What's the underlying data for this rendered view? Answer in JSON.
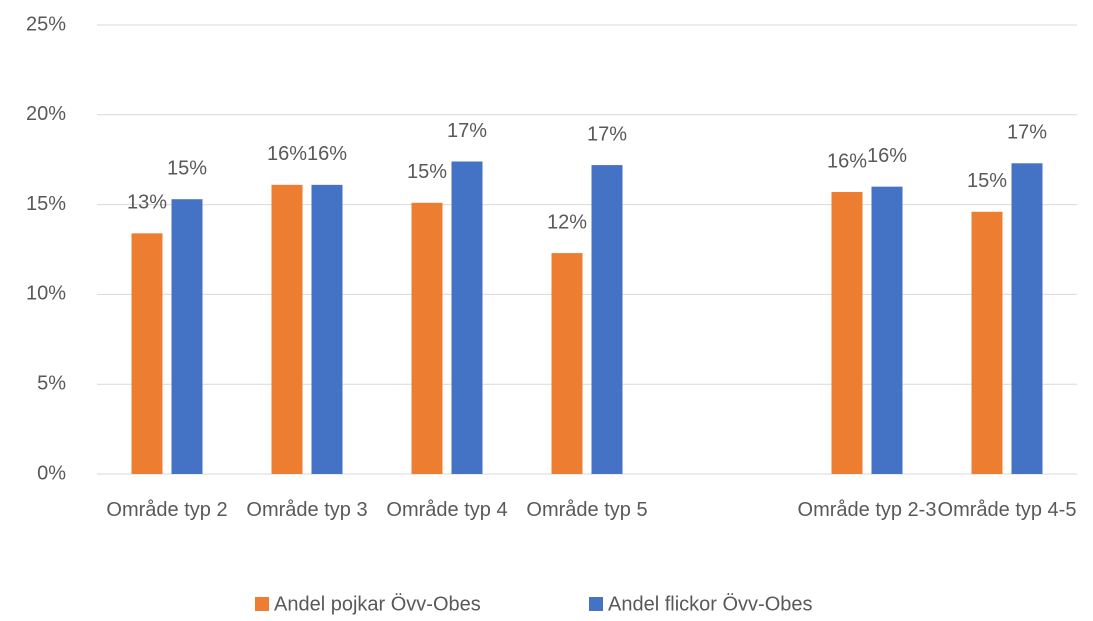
{
  "chart_data": {
    "type": "bar",
    "categories": [
      "Område typ 2",
      "Område typ 3",
      "Område typ 4",
      "Område typ 5",
      null,
      "Område typ 2-3",
      "Område typ 4-5"
    ],
    "series": [
      {
        "name": "Andel pojkar Övv-Obes",
        "color": "#ed7d31",
        "values": [
          13.4,
          16.1,
          15.1,
          12.3,
          null,
          15.7,
          14.6
        ],
        "value_labels": [
          "13%",
          "16%",
          "15%",
          "12%",
          null,
          "16%",
          "15%"
        ]
      },
      {
        "name": "Andel flickor Övv-Obes",
        "color": "#4472c4",
        "values": [
          15.3,
          16.1,
          17.4,
          17.2,
          null,
          16.0,
          17.3
        ],
        "value_labels": [
          "15%",
          "16%",
          "17%",
          "17%",
          null,
          "16%",
          "17%"
        ]
      }
    ],
    "ylim": [
      0,
      25
    ],
    "yticks": [
      {
        "value": 0,
        "label": "0%"
      },
      {
        "value": 5,
        "label": "5%"
      },
      {
        "value": 10,
        "label": "10%"
      },
      {
        "value": 15,
        "label": "15%"
      },
      {
        "value": 20,
        "label": "20%"
      },
      {
        "value": 25,
        "label": "25%"
      }
    ],
    "grid": true,
    "legend": "bottom"
  }
}
